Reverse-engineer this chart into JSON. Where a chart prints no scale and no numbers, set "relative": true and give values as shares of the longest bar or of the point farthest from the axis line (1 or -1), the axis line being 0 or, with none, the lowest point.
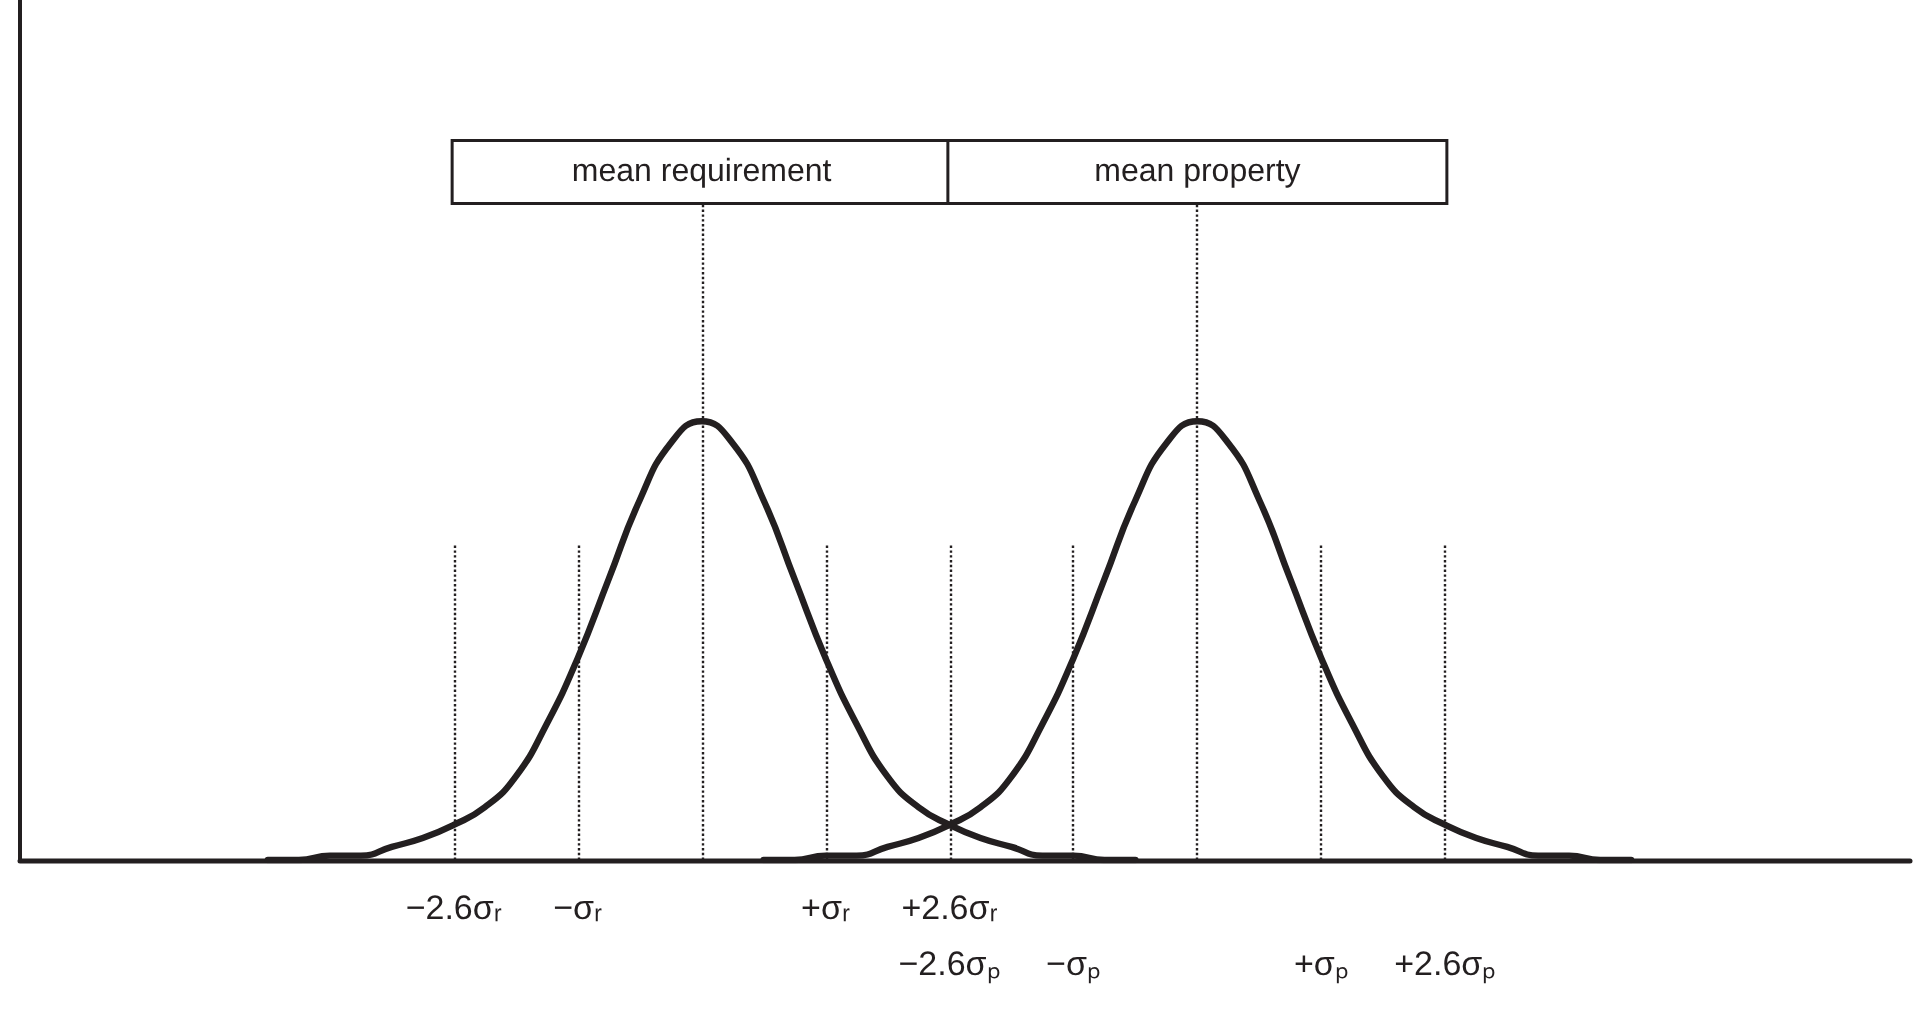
{
  "chart_data": {
    "type": "line",
    "relative": true,
    "marker": "none",
    "line_style": "solid",
    "grid": "x",
    "categories": [
      null,
      null,
      null,
      null,
      null,
      null,
      null,
      null,
      null,
      null,
      null,
      null,
      null,
      null,
      "−2.6σᵣ",
      null,
      null,
      null,
      "−σᵣ",
      null,
      null,
      null,
      null,
      null,
      null,
      null,
      "+σᵣ",
      null,
      null,
      null,
      "+2.6σᵣ\n−2.6σₚ",
      null,
      null,
      null,
      "\n−σₚ",
      null,
      null,
      null,
      null,
      null,
      null,
      null,
      "\n+σₚ",
      null,
      null,
      null,
      "\n+2.6σₚ",
      null,
      null,
      null,
      null,
      null,
      null,
      null,
      null,
      null,
      null,
      null,
      null,
      null,
      null,
      null
    ],
    "series": [
      {
        "color": "#231f20",
        "values": [
          null,
          null,
          null,
          null,
          null,
          null,
          null,
          null,
          0,
          0,
          0.01,
          0.01,
          0.03,
          0.05,
          0.08,
          0.12,
          0.19,
          0.31,
          0.46,
          0.64,
          0.82,
          0.95,
          1,
          0.95,
          0.82,
          0.64,
          0.46,
          0.31,
          0.19,
          0.12,
          0.08,
          0.05,
          0.03,
          0.01,
          0.01,
          0,
          0,
          null,
          null,
          null,
          null,
          null,
          null,
          null,
          null,
          null,
          null,
          null,
          null,
          null,
          null,
          null,
          null,
          null,
          null,
          null,
          null,
          null,
          null,
          null,
          null,
          null
        ]
      },
      {
        "color": "#231f20",
        "values": [
          null,
          null,
          null,
          null,
          null,
          null,
          null,
          null,
          null,
          null,
          null,
          null,
          null,
          null,
          null,
          null,
          null,
          null,
          null,
          null,
          null,
          null,
          null,
          null,
          0,
          0,
          0.01,
          0.01,
          0.03,
          0.05,
          0.08,
          0.12,
          0.19,
          0.31,
          0.46,
          0.64,
          0.82,
          0.95,
          1,
          0.95,
          0.82,
          0.64,
          0.46,
          0.31,
          0.19,
          0.12,
          0.08,
          0.05,
          0.03,
          0.01,
          0.01,
          0,
          0,
          null,
          null,
          null,
          null,
          null,
          null,
          null,
          null,
          null
        ]
      }
    ],
    "annotations": [
      "mean requirement",
      "mean property"
    ]
  }
}
